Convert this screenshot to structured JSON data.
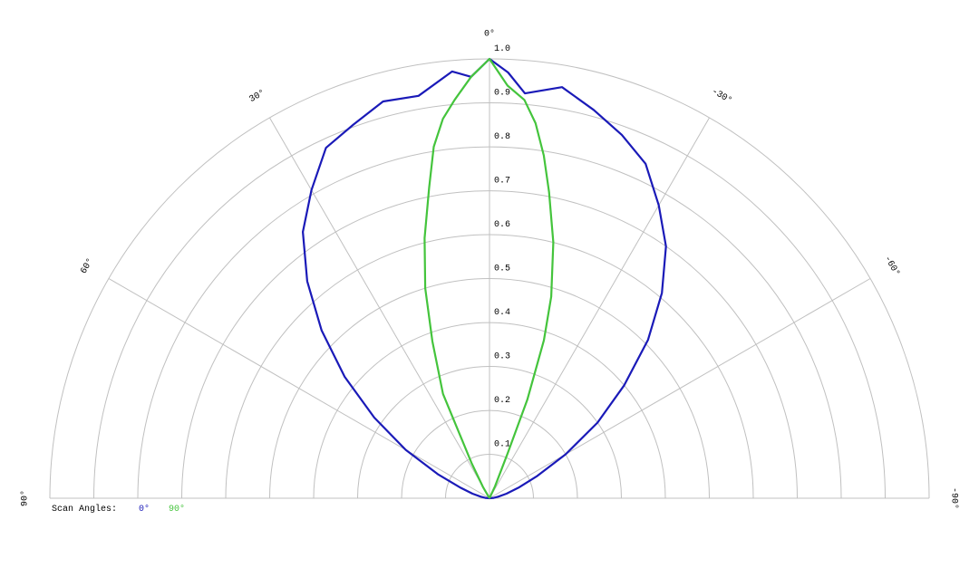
{
  "chart_data": {
    "type": "polar",
    "legend_title": "Scan Angles:",
    "rlim": [
      0,
      1
    ],
    "rticks": [
      0.1,
      0.2,
      0.3,
      0.4,
      0.5,
      0.6,
      0.7,
      0.8,
      0.9,
      {
        "value": 1,
        "label": "1.0"
      }
    ],
    "angle_ticks": [
      {
        "value": 90,
        "label": "90°"
      },
      {
        "value": 60,
        "label": "60°"
      },
      {
        "value": 30,
        "label": "30°"
      },
      {
        "value": 0,
        "label": "0°"
      },
      {
        "value": -30,
        "label": "-30°"
      },
      {
        "value": -60,
        "label": "-60°"
      },
      {
        "value": -90,
        "label": "-90°"
      }
    ],
    "grid": true,
    "series": [
      {
        "name": "0°",
        "color": "#1a1ab8",
        "x": [
          90,
          85,
          80,
          75,
          70,
          65,
          60,
          55,
          50,
          45,
          40,
          35,
          30,
          25,
          20,
          15,
          10,
          5,
          2.5,
          0,
          -2.5,
          -5,
          -10,
          -15,
          -20,
          -25,
          -30,
          -35,
          -40,
          -45,
          -50,
          -55,
          -60,
          -65,
          -70,
          -75,
          -80,
          -85,
          -90
        ],
        "values": [
          0,
          0.01,
          0.02,
          0.04,
          0.07,
          0.13,
          0.22,
          0.32,
          0.43,
          0.54,
          0.645,
          0.74,
          0.81,
          0.88,
          0.905,
          0.935,
          0.93,
          0.975,
          0.96,
          1.0,
          0.97,
          0.925,
          0.95,
          0.915,
          0.88,
          0.84,
          0.77,
          0.7,
          0.61,
          0.51,
          0.4,
          0.3,
          0.2,
          0.12,
          0.07,
          0.04,
          0.02,
          0.01,
          0
        ]
      },
      {
        "name": "90°",
        "color": "#44c43c",
        "x": [
          90,
          30,
          27,
          24,
          20,
          17,
          14,
          11,
          9,
          7,
          5,
          2.5,
          0,
          -2.5,
          -5,
          -7,
          -9,
          -11,
          -14,
          -17,
          -19,
          -21,
          -22,
          -25,
          -90
        ],
        "values": [
          0,
          0.03,
          0.09,
          0.26,
          0.38,
          0.5,
          0.61,
          0.72,
          0.81,
          0.87,
          0.91,
          0.96,
          1.0,
          0.94,
          0.91,
          0.86,
          0.79,
          0.71,
          0.6,
          0.48,
          0.38,
          0.24,
          0.11,
          0.03,
          0
        ]
      }
    ]
  }
}
